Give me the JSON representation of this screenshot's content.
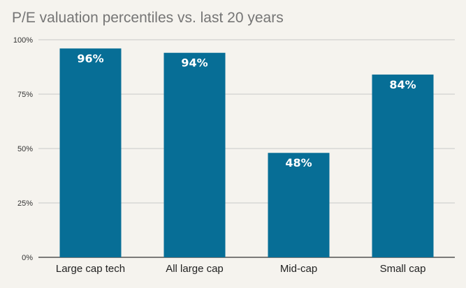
{
  "chart_data": {
    "type": "bar",
    "title": "P/E valuation percentiles vs. last 20 years",
    "categories": [
      "Large cap tech",
      "All large cap",
      "Mid-cap",
      "Small cap"
    ],
    "values": [
      96,
      94,
      48,
      84
    ],
    "data_labels": [
      "96%",
      "94%",
      "48%",
      "84%"
    ],
    "y_ticks": [
      0,
      25,
      50,
      75,
      100
    ],
    "y_tick_labels": [
      "0%",
      "25%",
      "50%",
      "75%",
      "100%"
    ],
    "ylim": [
      0,
      100
    ],
    "xlabel": "",
    "ylabel": "",
    "grid": true,
    "legend": "none",
    "colors": {
      "bar": "#076e96",
      "grid": "#c8c8c8",
      "axis": "#333333",
      "background": "#f5f3ee"
    }
  }
}
